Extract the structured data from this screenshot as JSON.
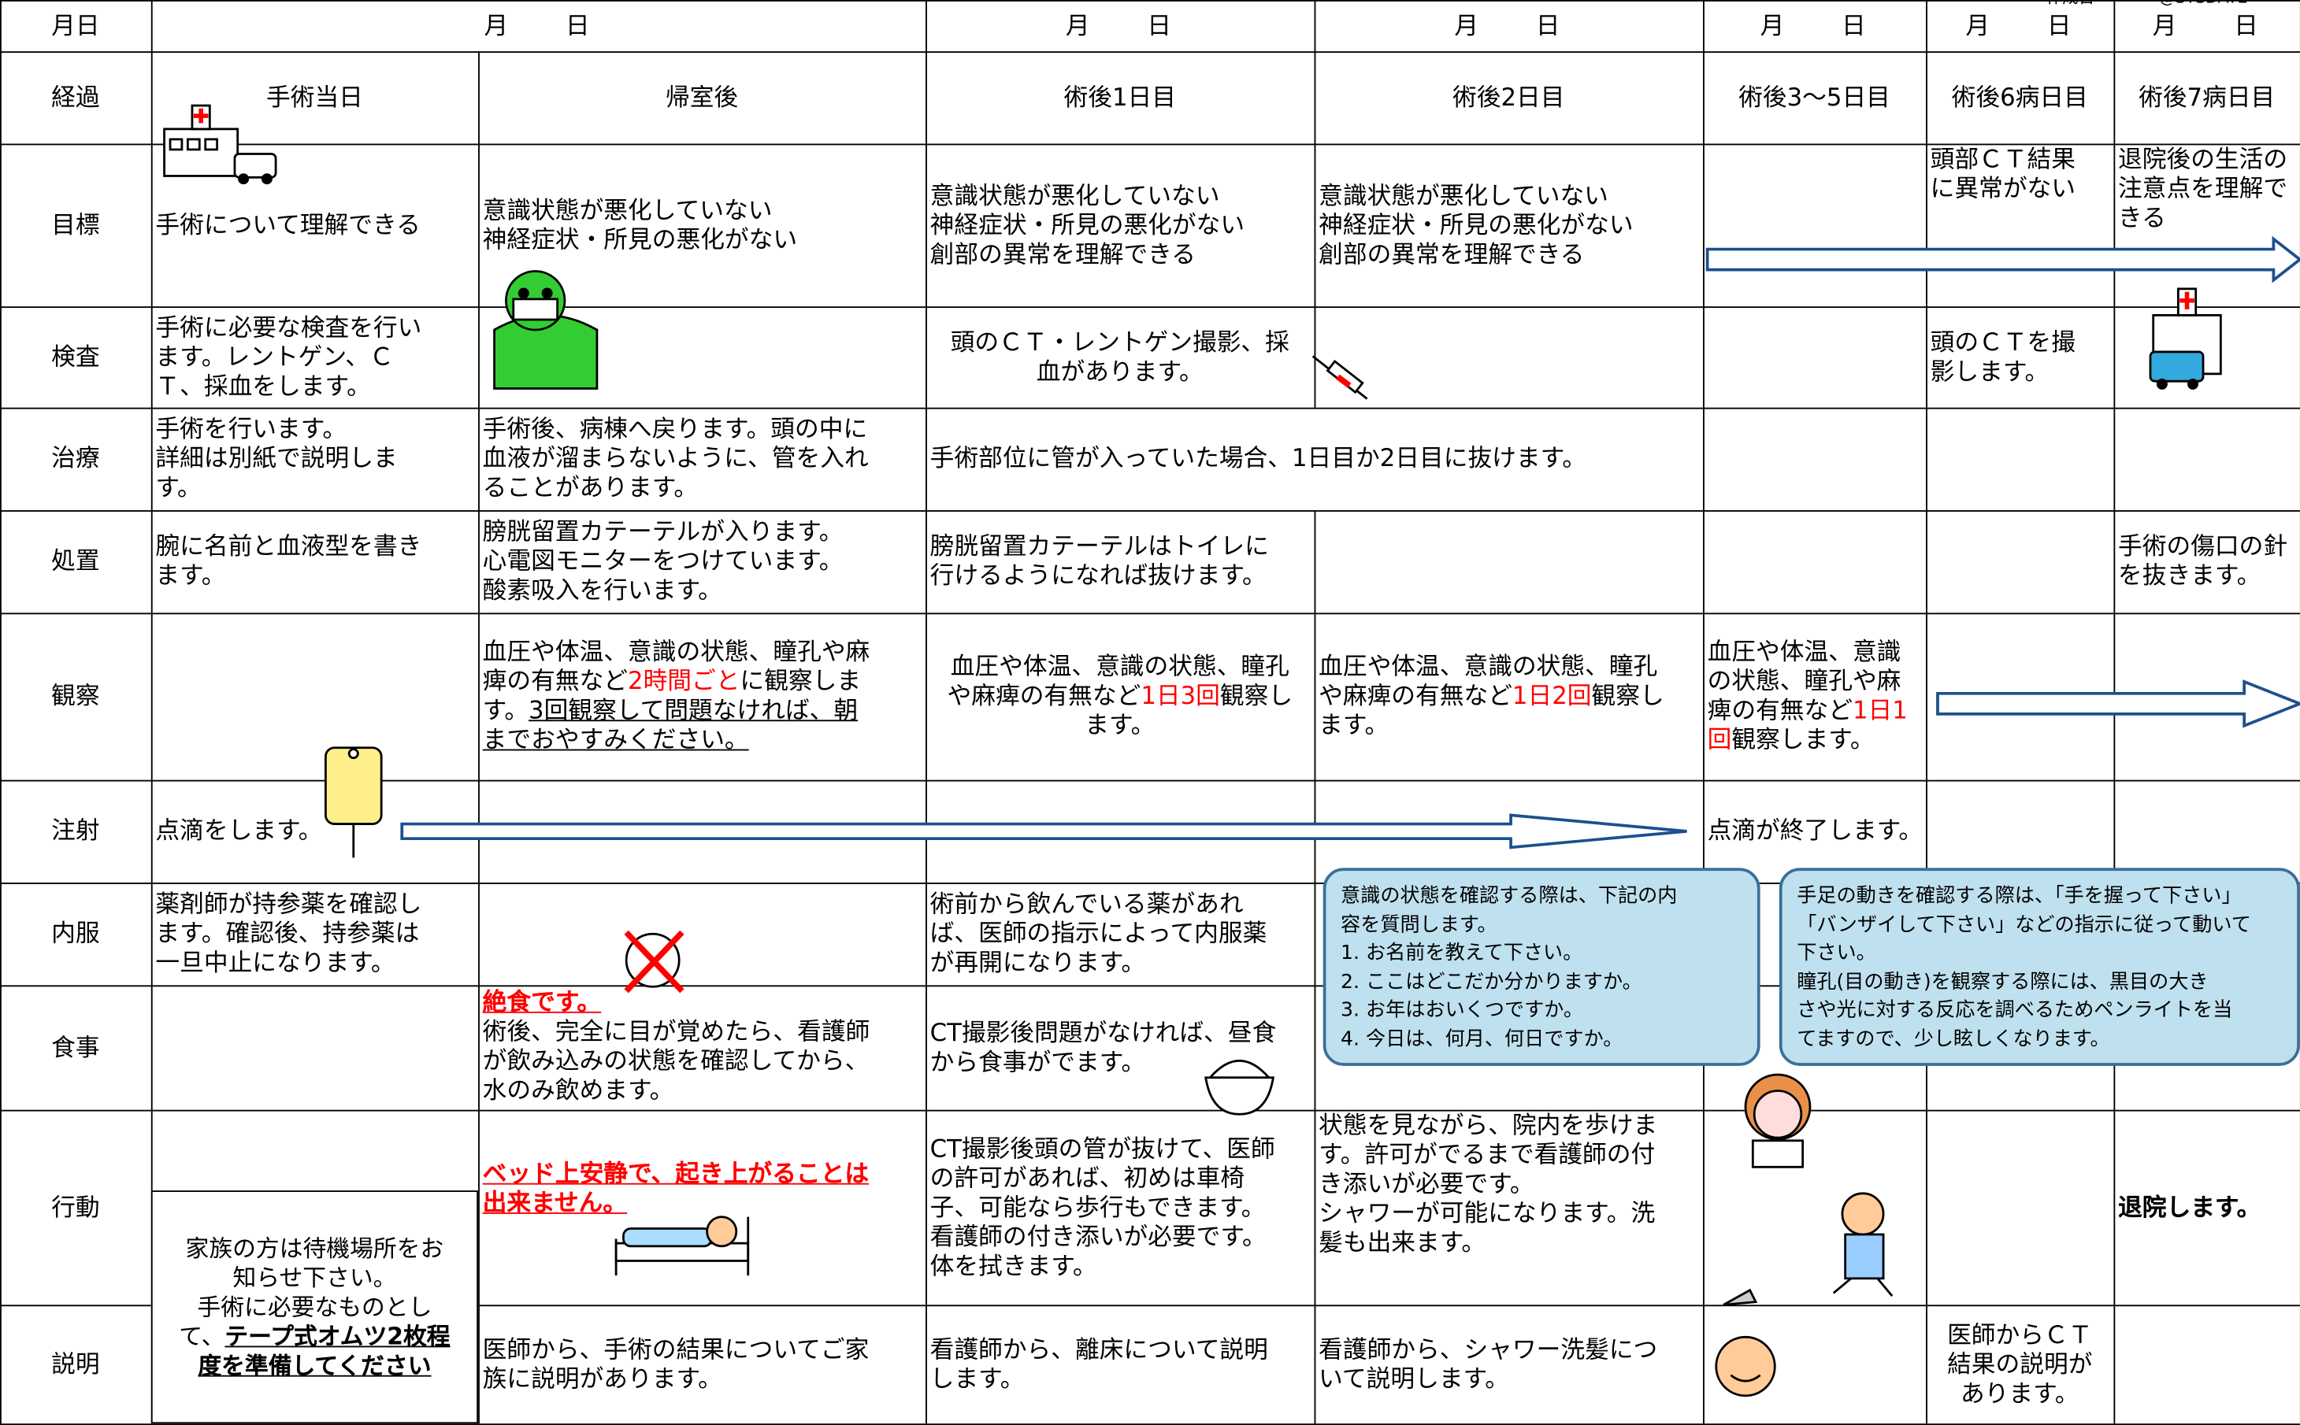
{
  "header": {
    "created": "作成日",
    "sysdate": "@SYSDATE",
    "date_row": {
      "label": "月日",
      "cells": [
        "月　　日",
        "月　　日",
        "月　　日",
        "月　　日",
        "月　　日",
        "月　　日"
      ]
    },
    "phase_row": {
      "label": "経過",
      "cells": [
        "手術当日",
        "帰室後",
        "術後1日目",
        "術後2日目",
        "術後3〜5日目",
        "術後6病日目",
        "術後7病日目"
      ]
    }
  },
  "rows": [
    {
      "label": "目標",
      "cells": [
        {
          "lines": [
            "手術について理解できる"
          ]
        },
        {
          "lines": [
            "意識状態が悪化していない",
            "神経症状・所見の悪化がない"
          ]
        },
        {
          "lines": [
            "意識状態が悪化していない",
            "神経症状・所見の悪化がない",
            "創部の異常を理解できる"
          ]
        },
        {
          "lines": [
            "意識状態が悪化していない",
            "神経症状・所見の悪化がない",
            "創部の異常を理解できる"
          ]
        },
        {
          "lines": [
            "頭部ＣＴ結果",
            "に異常がない"
          ]
        },
        {
          "lines": [
            "退院後の生活の",
            "注意点を理解で",
            "きる"
          ]
        }
      ]
    },
    {
      "label": "検査",
      "cells": [
        {
          "lines": [
            "手術に必要な検査を行い",
            "ます。レントゲン、Ｃ",
            "Ｔ、採血をします。"
          ]
        },
        {
          "lines": [
            "頭のＣＴ・レントゲン撮影、採",
            "血があります。"
          ]
        },
        {
          "lines": [
            "頭のＣＴを撮",
            "影します。"
          ]
        }
      ]
    },
    {
      "label": "治療",
      "cells": [
        {
          "lines": [
            "手術を行います。",
            "詳細は別紙で説明しま",
            "す。"
          ]
        },
        {
          "lines": [
            "手術後、病棟へ戻ります。頭の中に",
            "血液が溜まらないように、管を入れ",
            "ることがあります。"
          ]
        },
        {
          "lines": [
            "手術部位に管が入っていた場合、1日目か2日目に抜けます。"
          ]
        }
      ]
    },
    {
      "label": "処置",
      "cells": [
        {
          "lines": [
            "腕に名前と血液型を書き",
            "ます。"
          ]
        },
        {
          "lines": [
            "膀胱留置カテーテルが入ります。",
            "心電図モニターをつけています。",
            "酸素吸入を行います。"
          ]
        },
        {
          "lines": [
            "膀胱留置カテーテルはトイレに",
            "行けるようになれば抜けます。"
          ]
        },
        {
          "lines": [
            "手術の傷口の針",
            "を抜きます。"
          ]
        }
      ]
    },
    {
      "label": "観察",
      "cells": [
        {
          "lines": [
            "血圧や体温、意識の状態、瞳孔や麻",
            [
              "痺の有無など",
              {
                "text": "2時間ごと",
                "color": "red"
              },
              "に観察しま"
            ],
            [
              "す。",
              {
                "text": "3回観察して問題なければ、朝",
                "underline": true
              }
            ],
            [
              {
                "text": "までおやすみください。",
                "underline": true
              }
            ]
          ]
        },
        {
          "lines": [
            "血圧や体温、意識の状態、瞳孔",
            [
              "や麻痺の有無など",
              {
                "text": "1日3回",
                "color": "red"
              },
              "観察し"
            ],
            "ます。"
          ]
        },
        {
          "lines": [
            "血圧や体温、意識の状態、瞳孔",
            [
              "や麻痺の有無など",
              {
                "text": "1日2回",
                "color": "red"
              },
              "観察し"
            ],
            "ます。"
          ]
        },
        {
          "lines": [
            "血圧や体温、意識",
            "の状態、瞳孔や麻",
            [
              "痺の有無など",
              {
                "text": "1日1",
                "color": "red"
              }
            ],
            [
              {
                "text": "回",
                "color": "red"
              },
              "観察します。"
            ]
          ]
        }
      ]
    },
    {
      "label": "注射",
      "cells": [
        {
          "lines": [
            "点滴をします。"
          ]
        },
        {
          "lines": [
            "点滴が終了します。"
          ]
        }
      ]
    },
    {
      "label": "内服",
      "cells": [
        {
          "lines": [
            "薬剤師が持参薬を確認し",
            "ます。確認後、持参薬は",
            "一旦中止になります。"
          ]
        },
        {
          "lines": [
            "術前から飲んでいる薬があれ",
            "ば、医師の指示によって内服薬",
            "が再開になります。"
          ]
        }
      ]
    },
    {
      "label": "食事",
      "cells": [
        {
          "lines": [
            [
              {
                "text": "絶食です。",
                "color": "red",
                "underline": true,
                "bold": true
              }
            ],
            "術後、完全に目が覚めたら、看護師",
            "が飲み込みの状態を確認してから、",
            "水のみ飲めます。"
          ]
        },
        {
          "lines": [
            "CT撮影後問題がなければ、昼食",
            "から食事がでます。"
          ]
        }
      ]
    },
    {
      "label": "行動",
      "cells": [
        {
          "lines": [
            [
              {
                "text": "ベッド上安静で、起き上がることは",
                "color": "red",
                "underline": true,
                "bold": true
              }
            ],
            [
              {
                "text": "出来ません。",
                "color": "red",
                "underline": true,
                "bold": true
              }
            ]
          ]
        },
        {
          "lines": [
            "CT撮影後頭の管が抜けて、医師",
            "の許可があれば、初めは車椅",
            "子、可能なら歩行もできます。",
            "看護師の付き添いが必要です。",
            "体を拭きます。"
          ]
        },
        {
          "lines": [
            "状態を見ながら、院内を歩けま",
            "す。許可がでるまで看護師の付",
            "き添いが必要です。",
            "シャワーが可能になります。洗",
            "髪も出来ます。"
          ]
        },
        {
          "lines": [
            [
              {
                "text": "退院します。",
                "bold": true
              }
            ]
          ]
        }
      ]
    },
    {
      "label": "説明",
      "cells": [
        {
          "lines": [
            "医師から、手術の結果についてご家",
            "族に説明があります。"
          ]
        },
        {
          "lines": [
            "看護師から、離床について説明",
            "します。"
          ]
        },
        {
          "lines": [
            "看護師から、シャワー洗髪につ",
            "いて説明します。"
          ]
        },
        {
          "lines": [
            "医師からＣＴ",
            "結果の説明が",
            "あります。"
          ]
        }
      ]
    }
  ],
  "family_note": {
    "lines": [
      "家族の方は待機場所をお",
      "知らせ下さい。",
      "手術に必要なものとし",
      [
        "て、",
        {
          "text": "テープ式オムツ2枚程",
          "bold": true,
          "underline": true
        }
      ],
      [
        {
          "text": "度を準備してください",
          "bold": true,
          "underline": true
        }
      ]
    ]
  },
  "callouts": [
    {
      "lines": [
        "意識の状態を確認する際は、下記の内",
        "容を質問します。",
        "1. お名前を教えて下さい。",
        "2. ここはどこだか分かりますか。",
        "3. お年はおいくつですか。",
        "4. 今日は、何月、何日ですか。"
      ]
    },
    {
      "lines": [
        "手足の動きを確認する際は、「手を握って下さい」",
        "「バンザイして下さい」などの指示に従って動いて",
        "下さい。",
        "瞳孔(目の動き)を観察する際には、黒目の大き",
        "さや光に対する反応を調べるためペンライトを当",
        "てますので、少し眩しくなります。"
      ]
    }
  ]
}
